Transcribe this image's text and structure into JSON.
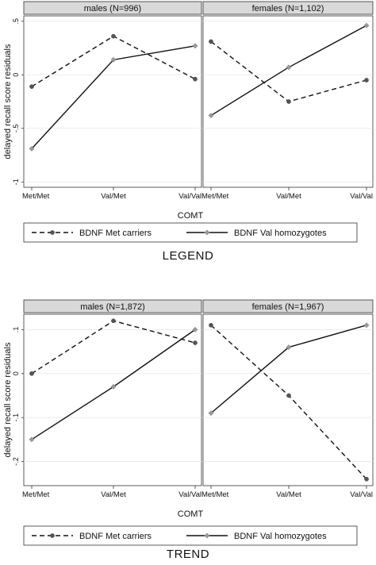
{
  "chart_data": [
    {
      "type": "line",
      "title": "LEGEND",
      "xlabel": "COMT",
      "ylabel": "delayed recall score residuals",
      "categories": [
        "Met/Met",
        "Val/Met",
        "Val/Val"
      ],
      "ylim": [
        -1.05,
        0.55
      ],
      "yticks": [
        0.5,
        0,
        -0.5,
        -1
      ],
      "ytick_labels": [
        ".5",
        "0",
        "-.5",
        "-1"
      ],
      "grid": true,
      "legend": {
        "position": "bottom",
        "entries": [
          "BDNF Met carriers",
          "BDNF Val homozygotes"
        ]
      },
      "panels": [
        {
          "label": "males (N=996)",
          "series": [
            {
              "name": "BDNF Met carriers",
              "style": "dashed",
              "marker_color": "#555555",
              "values": [
                -0.11,
                0.36,
                -0.04
              ]
            },
            {
              "name": "BDNF Val homozygotes",
              "style": "solid",
              "marker_color": "#999999",
              "values": [
                -0.69,
                0.14,
                0.27
              ]
            }
          ]
        },
        {
          "label": "females (N=1,102)",
          "series": [
            {
              "name": "BDNF Met carriers",
              "style": "dashed",
              "marker_color": "#555555",
              "values": [
                0.31,
                -0.25,
                -0.05
              ]
            },
            {
              "name": "BDNF Val homozygotes",
              "style": "solid",
              "marker_color": "#999999",
              "values": [
                -0.38,
                0.07,
                0.46
              ]
            }
          ]
        }
      ]
    },
    {
      "type": "line",
      "title": "TREND",
      "xlabel": "COMT",
      "ylabel": "delayed recall score residuals",
      "categories": [
        "Met/Met",
        "Val/Met",
        "Val/Val"
      ],
      "ylim": [
        -0.255,
        0.135
      ],
      "yticks": [
        0.1,
        0,
        -0.1,
        -0.2
      ],
      "ytick_labels": [
        ".1",
        "0",
        "-.1",
        "-.2"
      ],
      "grid": true,
      "legend": {
        "position": "bottom",
        "entries": [
          "BDNF Met carriers",
          "BDNF Val homozygotes"
        ]
      },
      "panels": [
        {
          "label": "males (N=1,872)",
          "series": [
            {
              "name": "BDNF Met carriers",
              "style": "dashed",
              "marker_color": "#555555",
              "values": [
                0.0,
                0.12,
                0.07
              ]
            },
            {
              "name": "BDNF Val homozygotes",
              "style": "solid",
              "marker_color": "#999999",
              "values": [
                -0.15,
                -0.03,
                0.1
              ]
            }
          ]
        },
        {
          "label": "females (N=1,967)",
          "series": [
            {
              "name": "BDNF Met carriers",
              "style": "dashed",
              "marker_color": "#555555",
              "values": [
                0.11,
                -0.05,
                -0.24
              ]
            },
            {
              "name": "BDNF Val homozygotes",
              "style": "solid",
              "marker_color": "#999999",
              "values": [
                -0.09,
                0.06,
                0.11
              ]
            }
          ]
        }
      ]
    }
  ]
}
